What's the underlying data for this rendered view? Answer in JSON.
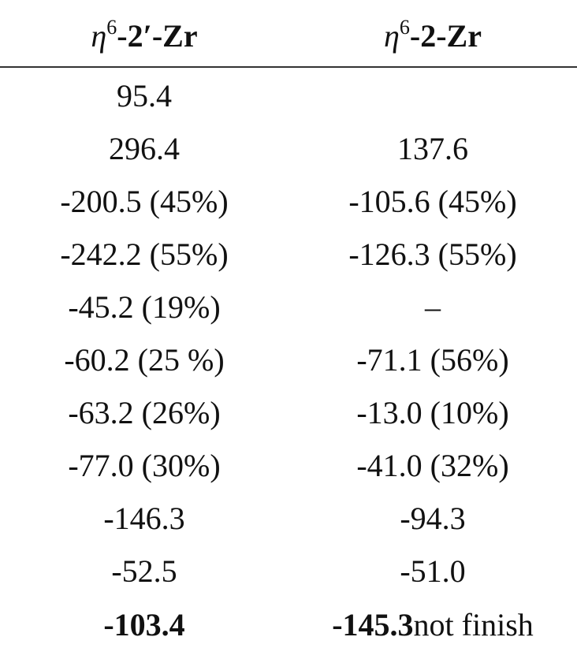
{
  "table": {
    "header": [
      {
        "symbol": "η",
        "sup": "6",
        "label": "-2′-Zr"
      },
      {
        "symbol": "η",
        "sup": "6",
        "label": "-2-Zr"
      }
    ],
    "rows": [
      {
        "left": "95.4"
      },
      {
        "left": "296.4",
        "right": "137.6"
      },
      {
        "left": "-200.5 (45%)",
        "right": "-105.6 (45%)"
      },
      {
        "left": "-242.2 (55%)",
        "right": "-126.3 (55%)"
      },
      {
        "left": "-45.2 (19%)",
        "right": "–"
      },
      {
        "left": "-60.2 (25 %)",
        "right": "-71.1 (56%)"
      },
      {
        "left": "-63.2 (26%)",
        "right": "-13.0 (10%)"
      },
      {
        "left": "-77.0 (30%)",
        "right": "-41.0 (32%)"
      },
      {
        "left": "-146.3",
        "right": "-94.3"
      },
      {
        "left": "-52.5",
        "right": "-51.0"
      }
    ],
    "total": {
      "left": "-103.4",
      "right": "-145.3",
      "right_note": "not finish"
    }
  }
}
